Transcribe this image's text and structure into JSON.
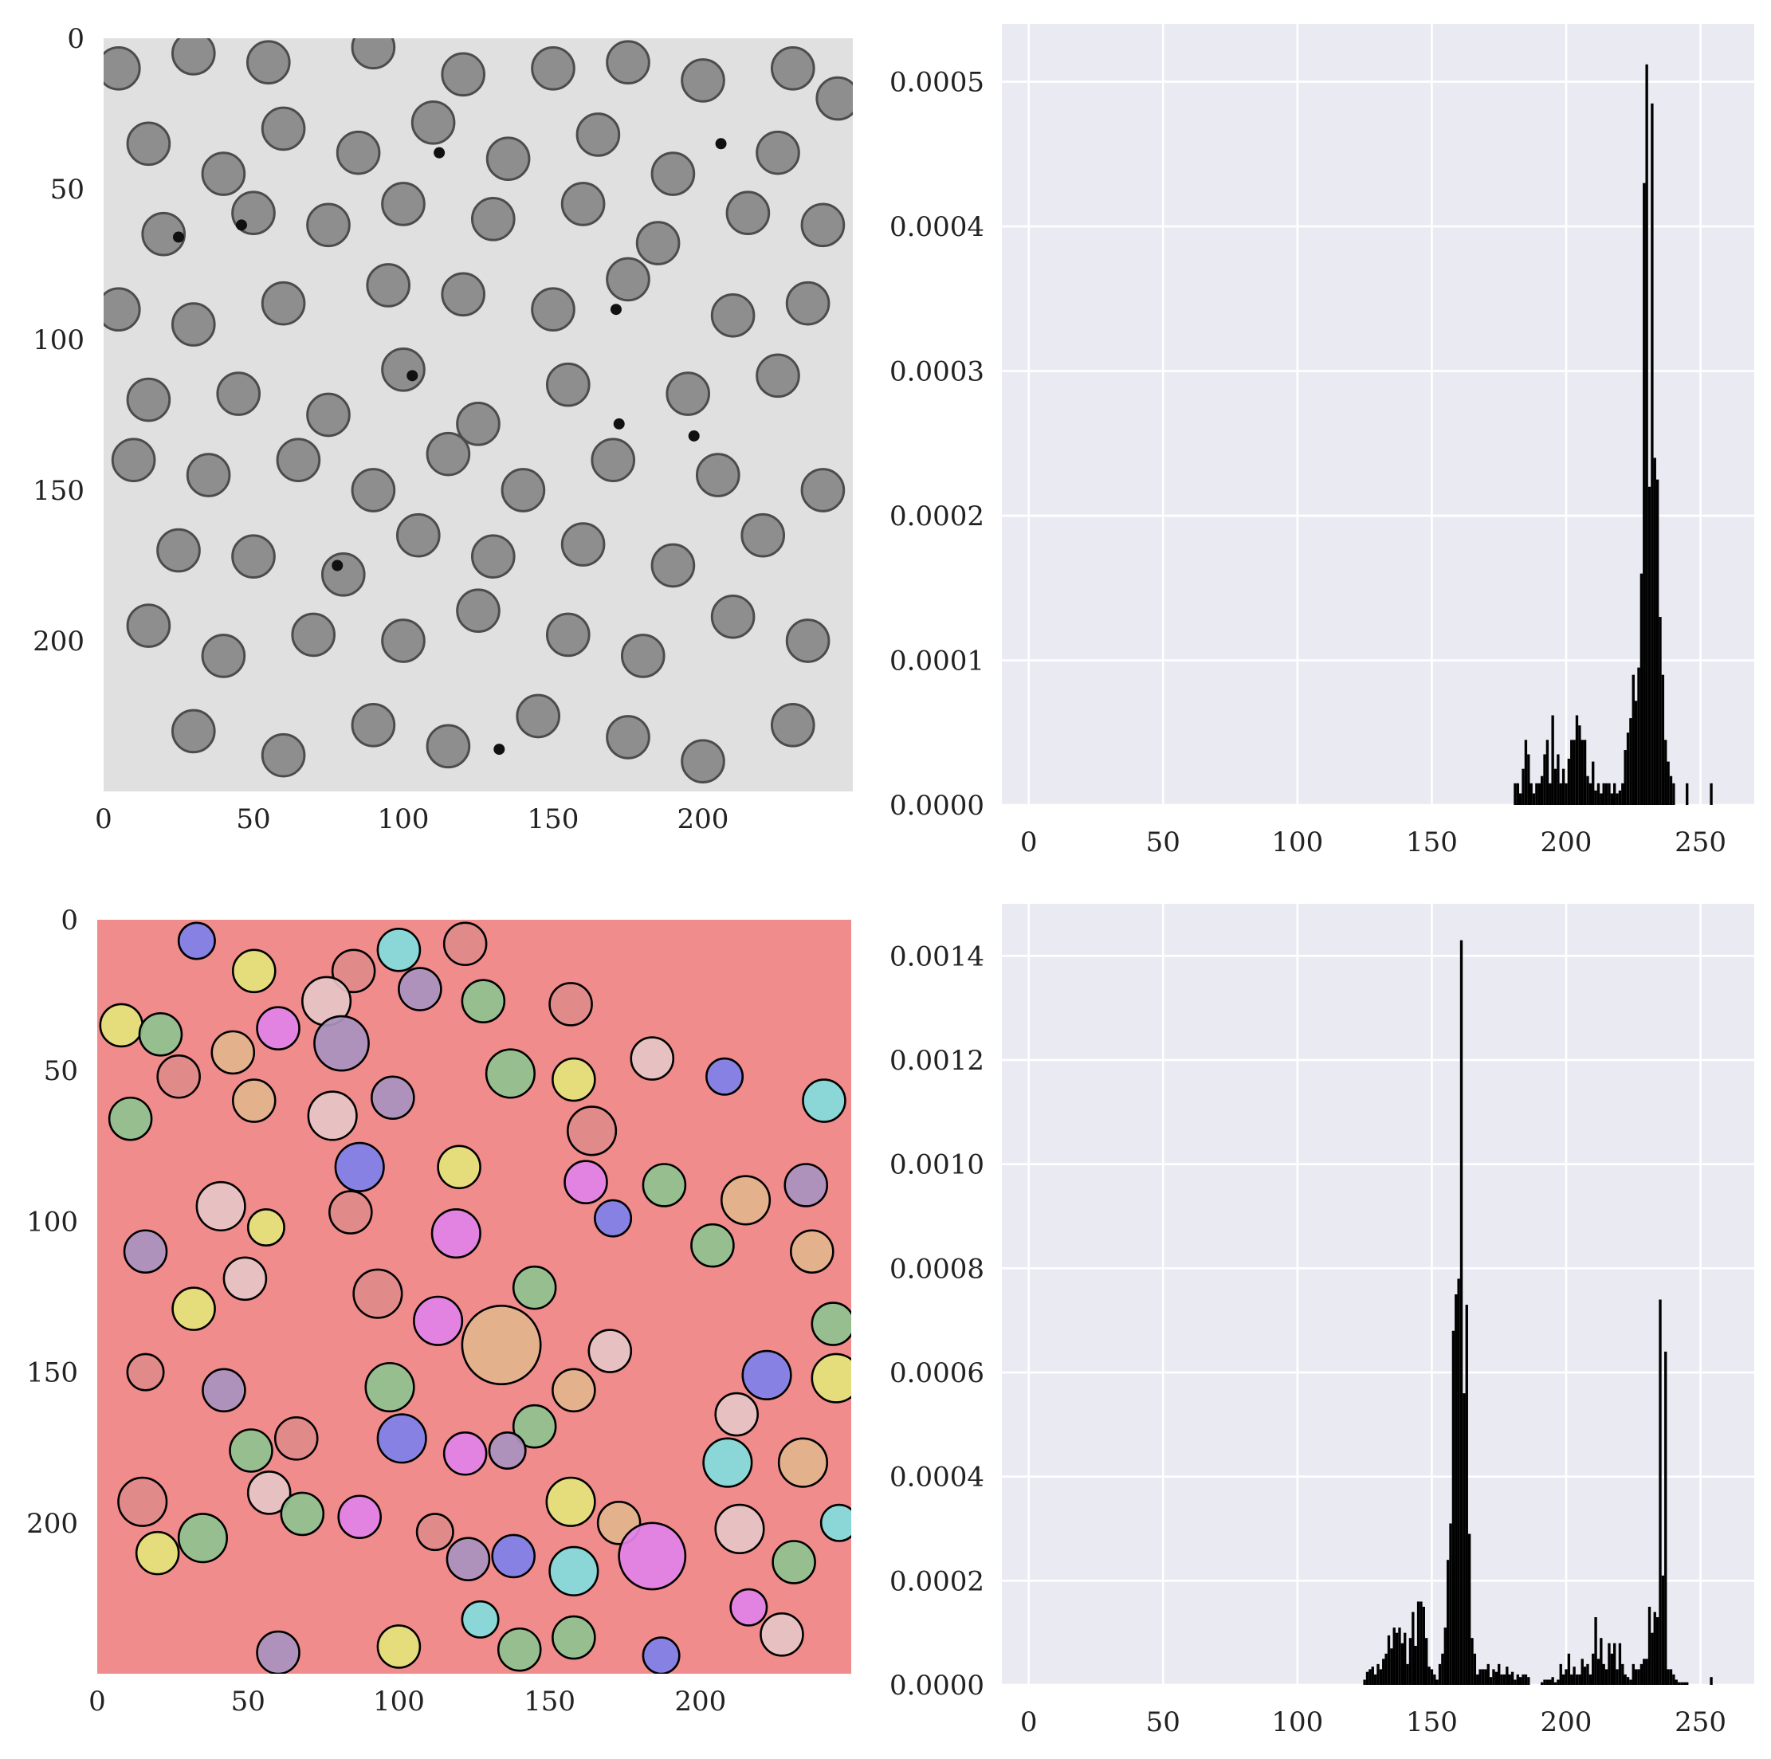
{
  "colors": {
    "axes_bg": "#eaeaf2",
    "grid": "#ffffff",
    "bar": "#000000",
    "cell_dark": "#6e6e6e",
    "image_bg": "#e0e0e0",
    "overlay_bg": "#f08c8c",
    "overlay_palette": [
      "#e4e47a",
      "#8fc28f",
      "#a992bf",
      "#e6c6c6",
      "#e2b48c",
      "#82dcdc",
      "#7f80ec",
      "#e182e8",
      "#e08a8a"
    ]
  },
  "chart_data": [
    {
      "id": "raw-image",
      "type": "image",
      "xlim": [
        0,
        250
      ],
      "ylim": [
        250,
        0
      ],
      "x_ticks": [
        "0",
        "50",
        "100",
        "150",
        "200"
      ],
      "y_ticks": [
        "0",
        "50",
        "100",
        "150",
        "200"
      ],
      "cells": [
        [
          5,
          10,
          7
        ],
        [
          30,
          5,
          7
        ],
        [
          55,
          8,
          7
        ],
        [
          90,
          3,
          7
        ],
        [
          120,
          12,
          7
        ],
        [
          150,
          10,
          7
        ],
        [
          175,
          8,
          7
        ],
        [
          200,
          14,
          7
        ],
        [
          230,
          10,
          7
        ],
        [
          245,
          20,
          7
        ],
        [
          15,
          35,
          7
        ],
        [
          40,
          45,
          7
        ],
        [
          60,
          30,
          7
        ],
        [
          85,
          38,
          7
        ],
        [
          110,
          28,
          7
        ],
        [
          135,
          40,
          7
        ],
        [
          165,
          32,
          7
        ],
        [
          190,
          45,
          7
        ],
        [
          225,
          38,
          7
        ],
        [
          20,
          65,
          7
        ],
        [
          50,
          58,
          7
        ],
        [
          75,
          62,
          7
        ],
        [
          100,
          55,
          7
        ],
        [
          130,
          60,
          7
        ],
        [
          160,
          55,
          7
        ],
        [
          185,
          68,
          7
        ],
        [
          215,
          58,
          7
        ],
        [
          240,
          62,
          7
        ],
        [
          5,
          90,
          7
        ],
        [
          30,
          95,
          7
        ],
        [
          60,
          88,
          7
        ],
        [
          95,
          82,
          7
        ],
        [
          120,
          85,
          7
        ],
        [
          150,
          90,
          7
        ],
        [
          175,
          80,
          7
        ],
        [
          210,
          92,
          7
        ],
        [
          235,
          88,
          7
        ],
        [
          15,
          120,
          7
        ],
        [
          45,
          118,
          7
        ],
        [
          75,
          125,
          7
        ],
        [
          100,
          110,
          7
        ],
        [
          125,
          128,
          7
        ],
        [
          155,
          115,
          7
        ],
        [
          195,
          118,
          7
        ],
        [
          225,
          112,
          7
        ],
        [
          10,
          140,
          7
        ],
        [
          35,
          145,
          7
        ],
        [
          65,
          140,
          7
        ],
        [
          90,
          150,
          7
        ],
        [
          115,
          138,
          7
        ],
        [
          140,
          150,
          7
        ],
        [
          170,
          140,
          7
        ],
        [
          205,
          145,
          7
        ],
        [
          240,
          150,
          7
        ],
        [
          25,
          170,
          7
        ],
        [
          50,
          172,
          7
        ],
        [
          80,
          178,
          7
        ],
        [
          105,
          165,
          7
        ],
        [
          130,
          172,
          7
        ],
        [
          160,
          168,
          7
        ],
        [
          190,
          175,
          7
        ],
        [
          220,
          165,
          7
        ],
        [
          15,
          195,
          7
        ],
        [
          40,
          205,
          7
        ],
        [
          70,
          198,
          7
        ],
        [
          100,
          200,
          7
        ],
        [
          125,
          190,
          7
        ],
        [
          155,
          198,
          7
        ],
        [
          180,
          205,
          7
        ],
        [
          210,
          192,
          7
        ],
        [
          235,
          200,
          7
        ],
        [
          30,
          230,
          7
        ],
        [
          60,
          238,
          7
        ],
        [
          90,
          228,
          7
        ],
        [
          115,
          235,
          7
        ],
        [
          145,
          225,
          7
        ],
        [
          175,
          232,
          7
        ],
        [
          200,
          240,
          7
        ],
        [
          230,
          228,
          7
        ]
      ],
      "dark_dots": [
        [
          206,
          35
        ],
        [
          112,
          38
        ],
        [
          46,
          62
        ],
        [
          25,
          66
        ],
        [
          171,
          90
        ],
        [
          103,
          112
        ],
        [
          172,
          128
        ],
        [
          197,
          132
        ],
        [
          78,
          175
        ],
        [
          132,
          236
        ]
      ]
    },
    {
      "id": "raw-histogram",
      "type": "bar",
      "xlim": [
        -10,
        270
      ],
      "ylim": [
        0,
        0.00054
      ],
      "bar_width": 1,
      "x_ticks": [
        "0",
        "50",
        "100",
        "150",
        "200",
        "250"
      ],
      "y_ticks": [
        "0.0000",
        "0.0001",
        "0.0002",
        "0.0003",
        "0.0004",
        "0.0005"
      ],
      "y_tick_values": [
        0,
        0.0001,
        0.0002,
        0.0003,
        0.0004,
        0.0005
      ],
      "x_tick_values": [
        0,
        50,
        100,
        150,
        200,
        250
      ],
      "x": [
        181,
        182,
        183,
        184,
        185,
        186,
        187,
        188,
        189,
        190,
        191,
        192,
        193,
        194,
        195,
        196,
        197,
        198,
        199,
        200,
        201,
        202,
        203,
        204,
        205,
        206,
        207,
        208,
        209,
        210,
        211,
        212,
        213,
        214,
        215,
        216,
        217,
        218,
        219,
        220,
        221,
        222,
        223,
        224,
        225,
        226,
        227,
        228,
        229,
        230,
        231,
        232,
        233,
        234,
        235,
        236,
        237,
        238,
        239,
        240,
        245,
        254
      ],
      "values": [
        1.5e-05,
        1.5e-05,
        8e-06,
        2.5e-05,
        4.5e-05,
        3.5e-05,
        1.5e-05,
        8e-06,
        1.5e-05,
        1.5e-05,
        2e-05,
        3.5e-05,
        4.5e-05,
        1.5e-05,
        6.2e-05,
        2.5e-05,
        3.5e-05,
        1.5e-05,
        2.5e-05,
        1.5e-05,
        3.2e-05,
        4.5e-05,
        4.5e-05,
        6.2e-05,
        5.5e-05,
        4.5e-05,
        4.5e-05,
        2e-05,
        1.5e-05,
        3e-05,
        1e-05,
        1.5e-05,
        8e-06,
        1.5e-05,
        1.5e-05,
        1.5e-05,
        8e-06,
        1.5e-05,
        8e-06,
        1e-05,
        1.5e-05,
        3.8e-05,
        5e-05,
        6e-05,
        9e-05,
        7.2e-05,
        9.5e-05,
        0.00016,
        0.00043,
        0.000512,
        0.00022,
        0.000485,
        0.00024,
        0.000225,
        0.00013,
        9e-05,
        4.5e-05,
        3e-05,
        2e-05,
        1.5e-05,
        1.5e-05,
        1.5e-05
      ]
    },
    {
      "id": "labeled-image",
      "type": "image",
      "xlim": [
        0,
        250
      ],
      "ylim": [
        250,
        0
      ],
      "x_ticks": [
        "0",
        "50",
        "100",
        "150",
        "200"
      ],
      "y_ticks": [
        "0",
        "50",
        "100",
        "150",
        "200"
      ],
      "circles": [
        [
          33,
          7,
          6,
          6
        ],
        [
          52,
          17,
          7,
          0
        ],
        [
          85,
          17,
          7,
          8
        ],
        [
          100,
          10,
          7,
          5
        ],
        [
          122,
          8,
          7,
          8
        ],
        [
          76,
          27,
          8,
          3
        ],
        [
          107,
          23,
          7,
          2
        ],
        [
          128,
          27,
          7,
          1
        ],
        [
          157,
          28,
          7,
          8
        ],
        [
          8,
          35,
          7,
          0
        ],
        [
          21,
          38,
          7,
          1
        ],
        [
          60,
          36,
          7,
          7
        ],
        [
          81,
          41,
          9,
          2
        ],
        [
          27,
          52,
          7,
          8
        ],
        [
          45,
          44,
          7,
          4
        ],
        [
          137,
          51,
          8,
          1
        ],
        [
          158,
          53,
          7,
          0
        ],
        [
          184,
          46,
          7,
          3
        ],
        [
          208,
          52,
          6,
          6
        ],
        [
          241,
          60,
          7,
          5
        ],
        [
          11,
          66,
          7,
          1
        ],
        [
          52,
          60,
          7,
          4
        ],
        [
          78,
          65,
          8,
          3
        ],
        [
          98,
          59,
          7,
          2
        ],
        [
          164,
          70,
          8,
          8
        ],
        [
          87,
          82,
          8,
          6
        ],
        [
          120,
          82,
          7,
          0
        ],
        [
          162,
          87,
          7,
          7
        ],
        [
          188,
          88,
          7,
          1
        ],
        [
          235,
          88,
          7,
          2
        ],
        [
          171,
          99,
          6,
          6
        ],
        [
          215,
          93,
          8,
          4
        ],
        [
          41,
          95,
          8,
          3
        ],
        [
          56,
          102,
          6,
          0
        ],
        [
          84,
          97,
          7,
          8
        ],
        [
          119,
          104,
          8,
          7
        ],
        [
          204,
          108,
          7,
          1
        ],
        [
          237,
          110,
          7,
          4
        ],
        [
          16,
          110,
          7,
          2
        ],
        [
          49,
          119,
          7,
          3
        ],
        [
          93,
          124,
          8,
          8
        ],
        [
          145,
          122,
          7,
          1
        ],
        [
          32,
          129,
          7,
          0
        ],
        [
          113,
          133,
          8,
          7
        ],
        [
          134,
          141,
          13,
          4
        ],
        [
          244,
          134,
          7,
          1
        ],
        [
          170,
          143,
          7,
          3
        ],
        [
          16,
          150,
          6,
          8
        ],
        [
          42,
          156,
          7,
          2
        ],
        [
          97,
          155,
          8,
          1
        ],
        [
          158,
          156,
          7,
          4
        ],
        [
          222,
          151,
          8,
          6
        ],
        [
          245,
          152,
          8,
          0
        ],
        [
          212,
          164,
          7,
          3
        ],
        [
          145,
          168,
          7,
          1
        ],
        [
          101,
          172,
          8,
          6
        ],
        [
          66,
          172,
          7,
          8
        ],
        [
          51,
          176,
          7,
          1
        ],
        [
          122,
          177,
          7,
          7
        ],
        [
          136,
          176,
          6,
          2
        ],
        [
          209,
          180,
          8,
          5
        ],
        [
          234,
          180,
          8,
          4
        ],
        [
          57,
          190,
          7,
          3
        ],
        [
          15,
          193,
          8,
          8
        ],
        [
          68,
          197,
          7,
          1
        ],
        [
          87,
          198,
          7,
          7
        ],
        [
          112,
          203,
          6,
          8
        ],
        [
          157,
          193,
          8,
          0
        ],
        [
          173,
          200,
          7,
          4
        ],
        [
          213,
          202,
          8,
          3
        ],
        [
          246,
          200,
          6,
          5
        ],
        [
          20,
          210,
          7,
          0
        ],
        [
          35,
          205,
          8,
          1
        ],
        [
          123,
          212,
          7,
          2
        ],
        [
          138,
          211,
          7,
          6
        ],
        [
          158,
          216,
          8,
          5
        ],
        [
          184,
          211,
          11,
          7
        ],
        [
          231,
          213,
          7,
          1
        ],
        [
          216,
          228,
          6,
          7
        ],
        [
          127,
          232,
          6,
          5
        ],
        [
          227,
          237,
          7,
          3
        ],
        [
          187,
          244,
          6,
          6
        ],
        [
          60,
          243,
          7,
          2
        ],
        [
          100,
          241,
          7,
          0
        ],
        [
          140,
          242,
          7,
          1
        ],
        [
          158,
          238,
          7,
          1
        ]
      ]
    },
    {
      "id": "labeled-histogram",
      "type": "bar",
      "xlim": [
        -10,
        270
      ],
      "ylim": [
        0,
        0.0015
      ],
      "bar_width": 1,
      "x_ticks": [
        "0",
        "50",
        "100",
        "150",
        "200",
        "250"
      ],
      "y_ticks": [
        "0.0000",
        "0.0002",
        "0.0004",
        "0.0006",
        "0.0008",
        "0.0010",
        "0.0012",
        "0.0014"
      ],
      "y_tick_values": [
        0,
        0.0002,
        0.0004,
        0.0006,
        0.0008,
        0.001,
        0.0012,
        0.0014
      ],
      "x_tick_values": [
        0,
        50,
        100,
        150,
        200,
        250
      ],
      "x": [
        125,
        126,
        127,
        128,
        129,
        130,
        131,
        132,
        133,
        134,
        135,
        136,
        137,
        138,
        139,
        140,
        141,
        142,
        143,
        144,
        145,
        146,
        147,
        148,
        149,
        150,
        151,
        152,
        153,
        154,
        155,
        156,
        157,
        158,
        159,
        160,
        161,
        162,
        163,
        164,
        165,
        166,
        167,
        168,
        169,
        170,
        171,
        172,
        173,
        174,
        175,
        176,
        177,
        178,
        179,
        180,
        181,
        182,
        183,
        184,
        185,
        186,
        191,
        192,
        193,
        194,
        195,
        196,
        197,
        198,
        199,
        200,
        201,
        202,
        203,
        204,
        205,
        206,
        207,
        208,
        209,
        210,
        211,
        212,
        213,
        214,
        215,
        216,
        217,
        218,
        219,
        220,
        221,
        222,
        223,
        224,
        225,
        226,
        227,
        228,
        229,
        230,
        231,
        232,
        233,
        234,
        235,
        236,
        237,
        238,
        239,
        240,
        241,
        242,
        243,
        244,
        245,
        254
      ],
      "values": [
        1e-05,
        2.5e-05,
        3e-05,
        3.5e-05,
        2e-05,
        4e-05,
        3e-05,
        5e-05,
        6e-05,
        9.5e-05,
        7e-05,
        0.00011,
        0.0001,
        0.00011,
        8e-05,
        0.0001,
        4e-05,
        9e-05,
        0.00014,
        7.5e-05,
        0.00016,
        0.00016,
        0.00015,
        9e-05,
        3.5e-05,
        3e-05,
        2e-05,
        1e-05,
        4e-05,
        6e-05,
        0.00011,
        0.00024,
        0.00031,
        0.00068,
        0.00075,
        0.00078,
        0.00143,
        0.00056,
        0.00073,
        0.00029,
        9e-05,
        6e-05,
        2e-05,
        3e-05,
        3e-05,
        3e-05,
        4e-05,
        1.5e-05,
        3e-05,
        2.5e-05,
        4e-05,
        2e-05,
        2e-05,
        3.5e-05,
        2e-05,
        2.5e-05,
        1e-05,
        2e-05,
        1.5e-05,
        2e-05,
        2e-05,
        1.5e-05,
        5e-06,
        1e-05,
        1e-05,
        1e-05,
        1.5e-05,
        5e-06,
        1e-05,
        4e-05,
        2e-05,
        3e-05,
        6e-05,
        2e-05,
        3.5e-05,
        2e-05,
        2e-05,
        5e-05,
        3.5e-05,
        4e-05,
        2e-05,
        6e-05,
        0.00013,
        5e-05,
        9e-05,
        4e-05,
        3e-05,
        8e-05,
        6e-05,
        8e-05,
        3e-05,
        8e-05,
        4e-05,
        2e-05,
        1.5e-05,
        1e-05,
        4e-05,
        3e-05,
        3e-05,
        4e-05,
        5e-05,
        5e-05,
        0.00015,
        0.0001,
        0.00014,
        0.00013,
        0.00074,
        0.00021,
        0.00064,
        3e-05,
        3e-05,
        2e-05,
        1e-05,
        5e-06,
        5e-06,
        5e-06,
        5e-06,
        1.5e-05
      ]
    }
  ]
}
